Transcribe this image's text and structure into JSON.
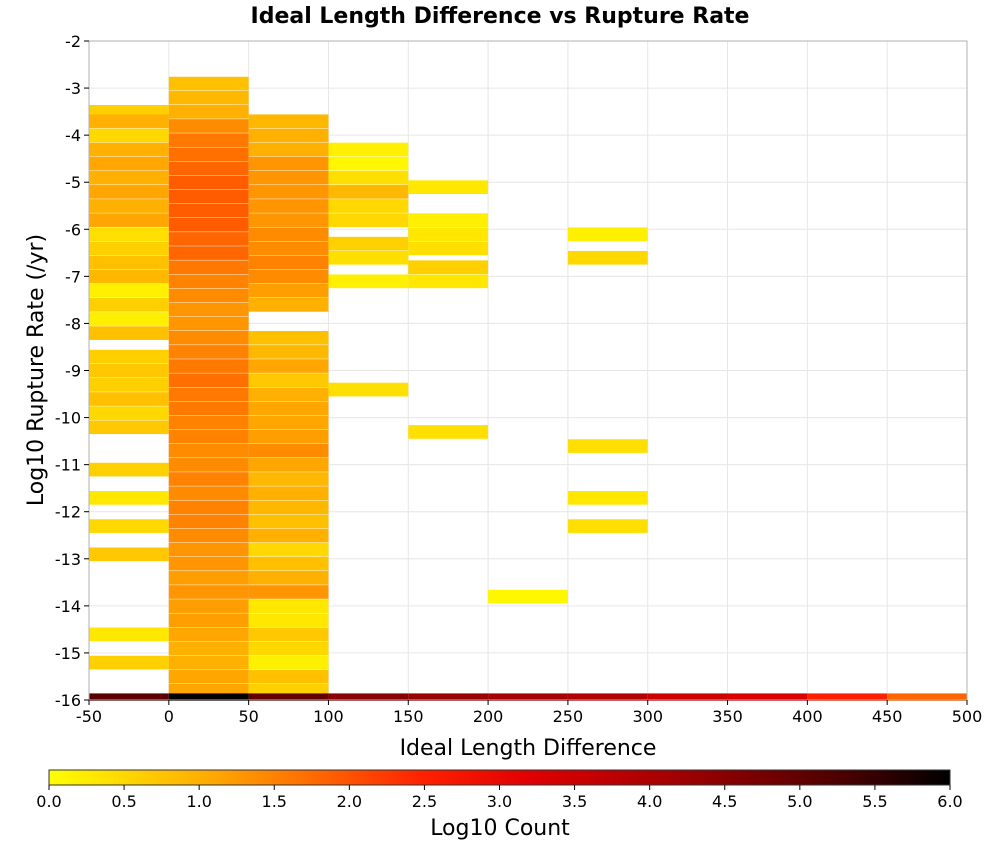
{
  "chart_data": {
    "type": "heatmap",
    "title": "Ideal Length Difference vs Rupture Rate",
    "xlabel": "Ideal Length Difference",
    "ylabel": "Log10 Rupture Rate (/yr)",
    "xlim": [
      -50,
      500
    ],
    "ylim": [
      -16,
      -2
    ],
    "x_ticks": [
      "-50",
      "0",
      "50",
      "100",
      "150",
      "200",
      "250",
      "300",
      "350",
      "400",
      "450",
      "500"
    ],
    "y_ticks": [
      "-2",
      "-3",
      "-4",
      "-5",
      "-6",
      "-7",
      "-8",
      "-9",
      "-10",
      "-11",
      "-12",
      "-13",
      "-14",
      "-15",
      "-16"
    ],
    "grid": true,
    "x_bin_width": 50,
    "y_bin_height": 0.28,
    "colorscale": {
      "label": "Log10 Count",
      "range": [
        0.0,
        6.0
      ],
      "ticks": [
        "0.0",
        "0.5",
        "1.0",
        "1.5",
        "2.0",
        "2.5",
        "3.0",
        "3.5",
        "4.0",
        "4.5",
        "5.0",
        "5.5",
        "6.0"
      ],
      "stops": [
        [
          0.0,
          "#ffff00"
        ],
        [
          1.0,
          "#ffb000"
        ],
        [
          1.7,
          "#ff7000"
        ],
        [
          2.5,
          "#ff2000"
        ],
        [
          3.2,
          "#e00000"
        ],
        [
          4.3,
          "#990000"
        ],
        [
          5.3,
          "#4a0000"
        ],
        [
          6.0,
          "#000000"
        ]
      ]
    },
    "columns": [
      {
        "x0": -50,
        "cells": [
          [
            -3.5,
            0.6
          ],
          [
            -3.7,
            1.0
          ],
          [
            -4.0,
            0.5
          ],
          [
            -4.3,
            1.0
          ],
          [
            -4.6,
            1.1
          ],
          [
            -4.9,
            1.0
          ],
          [
            -5.2,
            1.1
          ],
          [
            -5.5,
            1.0
          ],
          [
            -5.8,
            1.1
          ],
          [
            -6.1,
            0.4
          ],
          [
            -6.4,
            0.6
          ],
          [
            -6.7,
            0.8
          ],
          [
            -7.0,
            0.9
          ],
          [
            -7.3,
            0.2
          ],
          [
            -7.6,
            0.6
          ],
          [
            -7.9,
            0.2
          ],
          [
            -8.2,
            0.8
          ],
          [
            -8.7,
            0.6
          ],
          [
            -9.0,
            0.7
          ],
          [
            -9.3,
            0.6
          ],
          [
            -9.6,
            0.8
          ],
          [
            -9.9,
            0.5
          ],
          [
            -10.2,
            0.7
          ],
          [
            -11.1,
            0.6
          ],
          [
            -11.7,
            0.3
          ],
          [
            -12.3,
            0.5
          ],
          [
            -12.9,
            0.7
          ],
          [
            -14.6,
            0.3
          ],
          [
            -15.2,
            0.6
          ]
        ]
      },
      {
        "x0": 0,
        "cells": [
          [
            -2.9,
            0.8
          ],
          [
            -3.2,
            0.9
          ],
          [
            -3.5,
            1.0
          ],
          [
            -3.8,
            1.4
          ],
          [
            -4.1,
            1.6
          ],
          [
            -4.4,
            1.7
          ],
          [
            -4.7,
            1.8
          ],
          [
            -5.0,
            1.9
          ],
          [
            -5.3,
            1.9
          ],
          [
            -5.6,
            1.9
          ],
          [
            -5.9,
            1.9
          ],
          [
            -6.2,
            1.8
          ],
          [
            -6.5,
            1.8
          ],
          [
            -6.8,
            1.6
          ],
          [
            -7.1,
            1.5
          ],
          [
            -7.4,
            1.4
          ],
          [
            -7.7,
            1.3
          ],
          [
            -8.0,
            1.3
          ],
          [
            -8.3,
            1.4
          ],
          [
            -8.6,
            1.5
          ],
          [
            -8.9,
            1.6
          ],
          [
            -9.2,
            1.7
          ],
          [
            -9.5,
            1.6
          ],
          [
            -9.8,
            1.6
          ],
          [
            -10.1,
            1.5
          ],
          [
            -10.4,
            1.5
          ],
          [
            -10.7,
            1.4
          ],
          [
            -11.0,
            1.4
          ],
          [
            -11.3,
            1.5
          ],
          [
            -11.6,
            1.4
          ],
          [
            -11.9,
            1.5
          ],
          [
            -12.2,
            1.5
          ],
          [
            -12.5,
            1.4
          ],
          [
            -12.8,
            1.3
          ],
          [
            -13.1,
            1.3
          ],
          [
            -13.4,
            1.2
          ],
          [
            -13.7,
            1.3
          ],
          [
            -14.0,
            1.2
          ],
          [
            -14.3,
            1.2
          ],
          [
            -14.6,
            1.1
          ],
          [
            -14.9,
            1.0
          ],
          [
            -15.2,
            1.0
          ],
          [
            -15.5,
            1.1
          ],
          [
            -15.8,
            1.1
          ]
        ]
      },
      {
        "x0": 50,
        "cells": [
          [
            -3.7,
            0.9
          ],
          [
            -4.0,
            1.0
          ],
          [
            -4.3,
            1.0
          ],
          [
            -4.6,
            1.3
          ],
          [
            -4.9,
            1.3
          ],
          [
            -5.2,
            1.3
          ],
          [
            -5.5,
            1.3
          ],
          [
            -5.8,
            1.3
          ],
          [
            -6.1,
            1.4
          ],
          [
            -6.4,
            1.4
          ],
          [
            -6.7,
            1.5
          ],
          [
            -7.0,
            1.4
          ],
          [
            -7.3,
            1.2
          ],
          [
            -7.6,
            1.0
          ],
          [
            -8.3,
            0.8
          ],
          [
            -8.6,
            0.9
          ],
          [
            -8.9,
            1.1
          ],
          [
            -9.2,
            0.7
          ],
          [
            -9.5,
            1.0
          ],
          [
            -9.8,
            1.1
          ],
          [
            -10.1,
            1.1
          ],
          [
            -10.4,
            1.2
          ],
          [
            -10.7,
            1.4
          ],
          [
            -11.0,
            1.1
          ],
          [
            -11.3,
            0.9
          ],
          [
            -11.6,
            1.0
          ],
          [
            -11.9,
            0.9
          ],
          [
            -12.2,
            0.8
          ],
          [
            -12.5,
            1.0
          ],
          [
            -12.8,
            0.5
          ],
          [
            -13.1,
            0.8
          ],
          [
            -13.4,
            1.0
          ],
          [
            -13.7,
            1.3
          ],
          [
            -14.0,
            0.3
          ],
          [
            -14.3,
            0.3
          ],
          [
            -14.6,
            0.7
          ],
          [
            -14.9,
            0.5
          ],
          [
            -15.2,
            0.2
          ],
          [
            -15.5,
            0.8
          ],
          [
            -15.8,
            0.6
          ]
        ]
      },
      {
        "x0": 100,
        "cells": [
          [
            -4.3,
            0.2
          ],
          [
            -4.6,
            0.1
          ],
          [
            -4.9,
            0.4
          ],
          [
            -5.2,
            0.9
          ],
          [
            -5.5,
            0.5
          ],
          [
            -5.8,
            0.5
          ],
          [
            -6.3,
            0.6
          ],
          [
            -6.6,
            0.4
          ],
          [
            -7.1,
            0.2
          ],
          [
            -9.4,
            0.4
          ]
        ]
      },
      {
        "x0": 150,
        "cells": [
          [
            -5.1,
            0.3
          ],
          [
            -5.8,
            0.2
          ],
          [
            -6.1,
            0.3
          ],
          [
            -6.4,
            0.4
          ],
          [
            -6.8,
            0.6
          ],
          [
            -7.1,
            0.3
          ],
          [
            -10.3,
            0.4
          ]
        ]
      },
      {
        "x0": 200,
        "cells": [
          [
            -13.8,
            0.1
          ]
        ]
      },
      {
        "x0": 250,
        "cells": [
          [
            -6.1,
            0.2
          ],
          [
            -6.6,
            0.5
          ],
          [
            -10.6,
            0.4
          ],
          [
            -11.7,
            0.3
          ],
          [
            -12.3,
            0.4
          ]
        ]
      }
    ],
    "bottom_row": {
      "y": -16,
      "values": [
        [
          -50,
          5.1
        ],
        [
          0,
          6.0
        ],
        [
          50,
          5.0
        ],
        [
          100,
          4.5
        ],
        [
          150,
          4.3
        ],
        [
          200,
          4.1
        ],
        [
          250,
          3.9
        ],
        [
          300,
          3.5
        ],
        [
          350,
          3.3
        ],
        [
          400,
          2.5
        ],
        [
          450,
          1.8
        ]
      ]
    }
  }
}
